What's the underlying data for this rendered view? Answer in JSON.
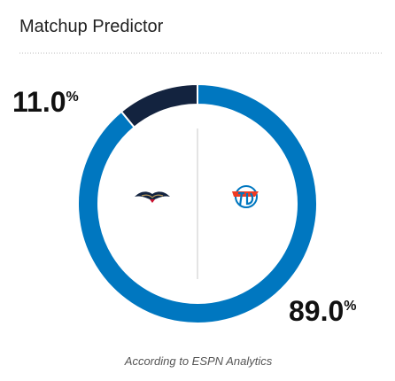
{
  "chart_data": {
    "type": "donut",
    "title": "Matchup Predictor",
    "values": [
      11.0,
      89.0
    ],
    "value_labels": [
      "11.0%",
      "89.0%"
    ],
    "colors": [
      "#13233f",
      "#0077c0"
    ],
    "note": "According to ESPN Analytics"
  }
}
